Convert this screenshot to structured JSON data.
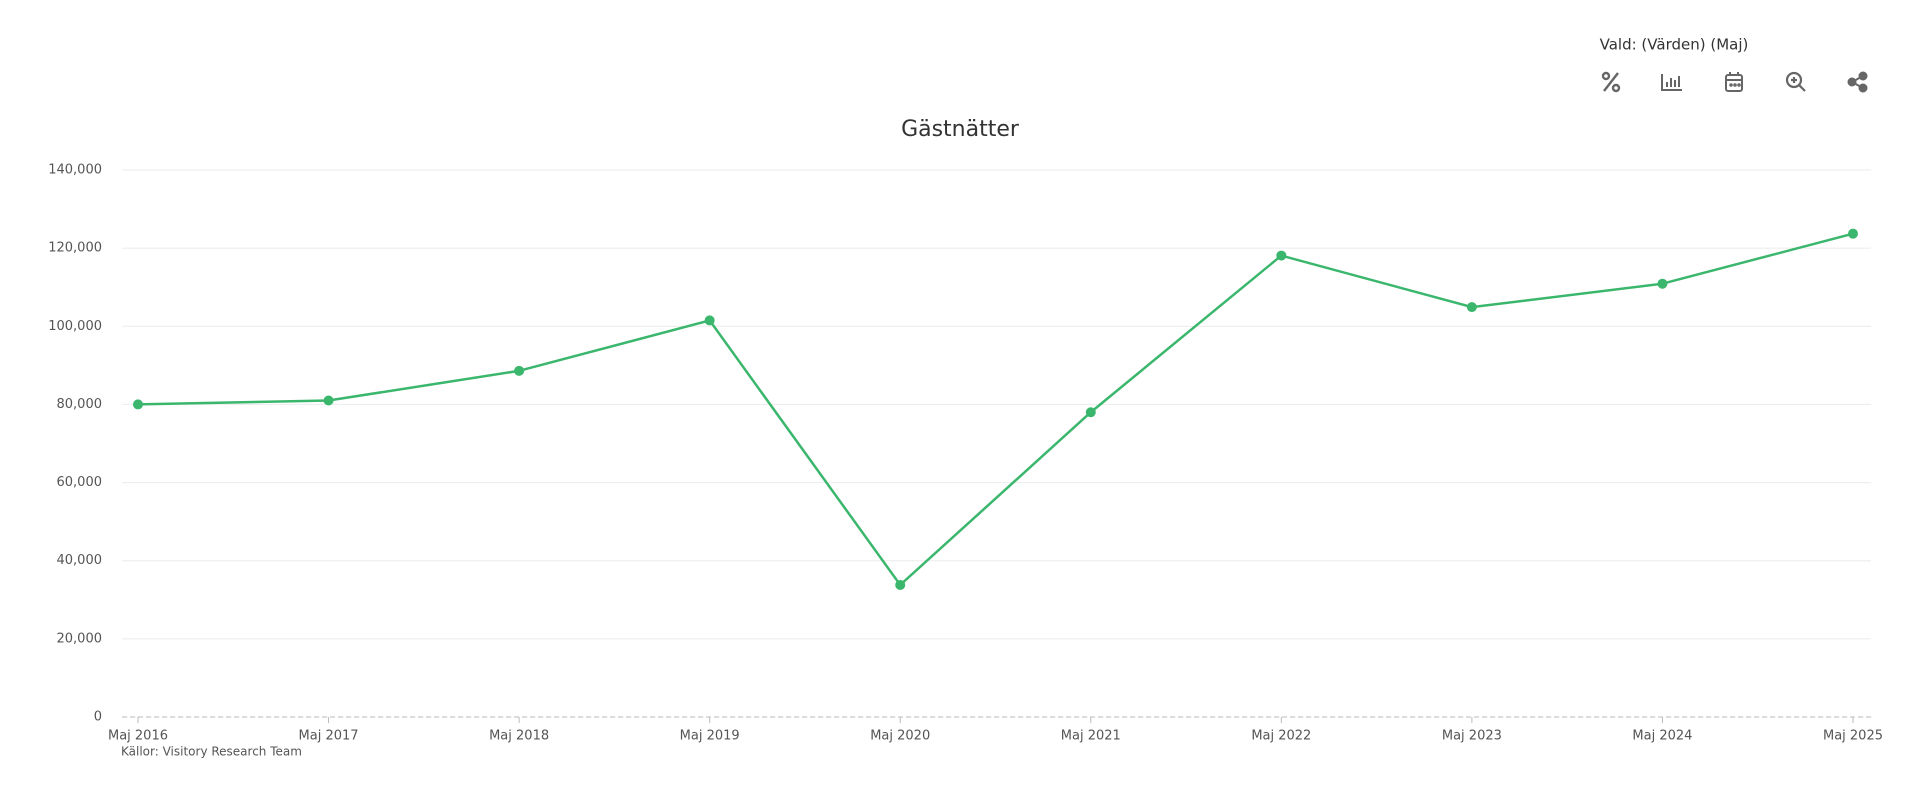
{
  "chart_data": {
    "type": "line",
    "title": "Gästnätter",
    "selection": "Vald: (Värden) (Maj)",
    "source": "Källor: Visitory Research Team",
    "categories": [
      "Maj 2016",
      "Maj 2017",
      "Maj 2018",
      "Maj 2019",
      "Maj 2020",
      "Maj 2021",
      "Maj 2022",
      "Maj 2023",
      "Maj 2024",
      "Maj 2025"
    ],
    "series": [
      {
        "name": "Gästnätter",
        "color": "#3bb66d",
        "values": [
          80000,
          81000,
          88600,
          101500,
          33800,
          78000,
          118100,
          104900,
          110900,
          123700
        ]
      }
    ],
    "ylim": [
      0,
      140000
    ],
    "yticks": [
      0,
      {
        "value": 20000,
        "label": "20,000"
      },
      {
        "value": 40000,
        "label": "40,000"
      },
      {
        "value": 60000,
        "label": "60,000"
      },
      {
        "value": 80000,
        "label": "80,000"
      },
      {
        "value": 100000,
        "label": "100,000"
      },
      {
        "value": 120000,
        "label": "120,000"
      },
      {
        "value": 140000,
        "label": "140,000"
      }
    ],
    "grid": true
  }
}
